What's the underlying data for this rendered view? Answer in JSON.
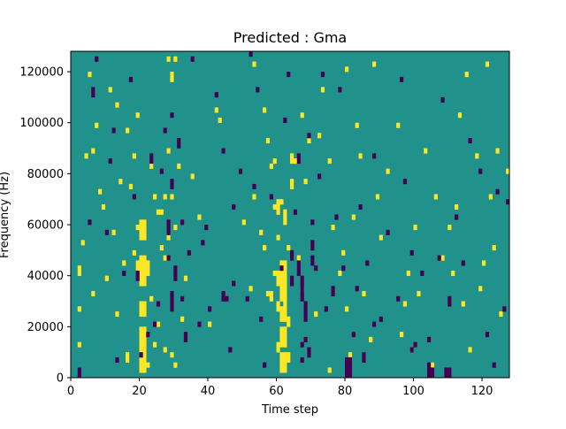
{
  "chart_data": {
    "type": "heatmap",
    "title": "Predicted : Gma",
    "xlabel": "Time step",
    "ylabel": "Frequency (Hz)",
    "xlim": [
      0,
      128
    ],
    "ylim": [
      0,
      128000
    ],
    "x_ticks": [
      0,
      20,
      40,
      60,
      80,
      100,
      120
    ],
    "y_ticks": [
      0,
      20000,
      40000,
      60000,
      80000,
      100000,
      120000
    ],
    "x_tick_labels": [
      "0",
      "20",
      "40",
      "60",
      "80",
      "100",
      "120"
    ],
    "y_tick_labels": [
      "0",
      "20000",
      "40000",
      "60000",
      "80000",
      "100000",
      "120000"
    ],
    "grid": false,
    "colormap": "viridis",
    "colors": {
      "low": "#440154",
      "mid": "#21918c",
      "high": "#fde725"
    },
    "value_range": [
      -1,
      1
    ],
    "background_value": 0,
    "rows": 128,
    "cols": 128,
    "cells_high": [
      [
        20,
        2,
        20
      ],
      [
        21,
        2,
        20
      ],
      [
        20,
        24,
        30
      ],
      [
        21,
        24,
        30
      ],
      [
        20,
        36,
        42
      ],
      [
        21,
        36,
        42
      ],
      [
        19,
        42,
        46
      ],
      [
        20,
        42,
        48
      ],
      [
        21,
        42,
        48
      ],
      [
        20,
        54,
        62
      ],
      [
        21,
        54,
        62
      ],
      [
        19,
        58,
        60
      ],
      [
        22,
        40,
        46
      ],
      [
        22,
        4,
        6
      ],
      [
        25,
        64,
        66
      ],
      [
        26,
        64,
        66
      ],
      [
        25,
        20,
        22
      ],
      [
        26,
        50,
        52
      ],
      [
        24,
        12,
        14
      ],
      [
        23,
        30,
        32
      ],
      [
        27,
        70,
        72
      ],
      [
        27,
        46,
        48
      ],
      [
        28,
        88,
        90
      ],
      [
        27,
        10,
        12
      ],
      [
        61,
        2,
        10
      ],
      [
        62,
        2,
        10
      ],
      [
        61,
        12,
        20
      ],
      [
        62,
        12,
        20
      ],
      [
        61,
        22,
        28
      ],
      [
        62,
        22,
        30
      ],
      [
        61,
        30,
        40
      ],
      [
        62,
        30,
        40
      ],
      [
        61,
        40,
        46
      ],
      [
        62,
        40,
        46
      ],
      [
        60,
        10,
        14
      ],
      [
        60,
        26,
        30
      ],
      [
        60,
        36,
        42
      ],
      [
        63,
        20,
        24
      ],
      [
        63,
        6,
        10
      ],
      [
        60,
        64,
        70
      ],
      [
        61,
        68,
        70
      ],
      [
        59,
        40,
        42
      ],
      [
        62,
        60,
        66
      ],
      [
        63,
        50,
        52
      ],
      [
        60,
        54,
        56
      ],
      [
        64,
        74,
        78
      ],
      [
        64,
        84,
        88
      ],
      [
        57,
        32,
        34
      ],
      [
        56,
        50,
        52
      ],
      [
        55,
        56,
        58
      ],
      [
        58,
        30,
        34
      ],
      [
        59,
        66,
        68
      ],
      [
        58,
        82,
        84
      ],
      [
        30,
        4,
        6
      ],
      [
        30,
        58,
        60
      ],
      [
        29,
        70,
        72
      ],
      [
        29,
        116,
        120
      ],
      [
        30,
        124,
        126
      ],
      [
        31,
        82,
        84
      ],
      [
        2,
        12,
        14
      ],
      [
        2,
        26,
        28
      ],
      [
        2,
        40,
        44
      ],
      [
        3,
        52,
        54
      ],
      [
        4,
        86,
        88
      ],
      [
        5,
        118,
        120
      ],
      [
        6,
        32,
        34
      ],
      [
        6,
        88,
        90
      ],
      [
        7,
        98,
        100
      ],
      [
        8,
        72,
        74
      ],
      [
        9,
        66,
        68
      ],
      [
        10,
        38,
        40
      ],
      [
        11,
        112,
        114
      ],
      [
        12,
        56,
        58
      ],
      [
        13,
        24,
        26
      ],
      [
        13,
        106,
        108
      ],
      [
        14,
        76,
        78
      ],
      [
        15,
        44,
        46
      ],
      [
        16,
        6,
        10
      ],
      [
        16,
        96,
        98
      ],
      [
        17,
        74,
        76
      ],
      [
        18,
        48,
        50
      ],
      [
        18,
        86,
        88
      ],
      [
        19,
        102,
        104
      ],
      [
        23,
        82,
        84
      ],
      [
        24,
        70,
        72
      ],
      [
        28,
        54,
        56
      ],
      [
        28,
        124,
        126
      ],
      [
        29,
        8,
        10
      ],
      [
        32,
        22,
        24
      ],
      [
        33,
        38,
        40
      ],
      [
        35,
        78,
        80
      ],
      [
        37,
        62,
        64
      ],
      [
        40,
        20,
        22
      ],
      [
        42,
        104,
        106
      ],
      [
        43,
        100,
        102
      ],
      [
        50,
        60,
        62
      ],
      [
        52,
        34,
        36
      ],
      [
        53,
        70,
        72
      ],
      [
        53,
        122,
        124
      ],
      [
        56,
        104,
        106
      ],
      [
        57,
        92,
        94
      ],
      [
        59,
        84,
        86
      ],
      [
        65,
        84,
        86
      ],
      [
        66,
        46,
        48
      ],
      [
        67,
        34,
        36
      ],
      [
        67,
        102,
        104
      ],
      [
        68,
        76,
        78
      ],
      [
        69,
        92,
        94
      ],
      [
        71,
        24,
        26
      ],
      [
        72,
        94,
        96
      ],
      [
        73,
        112,
        114
      ],
      [
        75,
        2,
        4
      ],
      [
        75,
        84,
        86
      ],
      [
        76,
        58,
        60
      ],
      [
        78,
        40,
        42
      ],
      [
        79,
        48,
        50
      ],
      [
        80,
        26,
        28
      ],
      [
        80,
        120,
        122
      ],
      [
        81,
        8,
        10
      ],
      [
        82,
        62,
        64
      ],
      [
        83,
        98,
        100
      ],
      [
        84,
        86,
        88
      ],
      [
        85,
        32,
        34
      ],
      [
        87,
        14,
        16
      ],
      [
        88,
        122,
        124
      ],
      [
        89,
        70,
        72
      ],
      [
        90,
        54,
        56
      ],
      [
        92,
        80,
        82
      ],
      [
        95,
        98,
        100
      ],
      [
        96,
        16,
        18
      ],
      [
        97,
        28,
        30
      ],
      [
        98,
        40,
        42
      ],
      [
        99,
        10,
        12
      ],
      [
        100,
        58,
        60
      ],
      [
        101,
        32,
        34
      ],
      [
        103,
        88,
        90
      ],
      [
        105,
        4,
        6
      ],
      [
        106,
        70,
        72
      ],
      [
        108,
        46,
        48
      ],
      [
        110,
        58,
        60
      ],
      [
        111,
        40,
        42
      ],
      [
        112,
        66,
        68
      ],
      [
        113,
        102,
        104
      ],
      [
        114,
        28,
        30
      ],
      [
        115,
        118,
        120
      ],
      [
        116,
        10,
        12
      ],
      [
        118,
        86,
        88
      ],
      [
        119,
        34,
        36
      ],
      [
        120,
        44,
        46
      ],
      [
        121,
        122,
        124
      ],
      [
        122,
        70,
        72
      ],
      [
        123,
        50,
        52
      ],
      [
        124,
        88,
        90
      ],
      [
        125,
        24,
        26
      ],
      [
        127,
        80,
        82
      ]
    ],
    "cells_low": [
      [
        80,
        0,
        8
      ],
      [
        81,
        0,
        8
      ],
      [
        104,
        0,
        6
      ],
      [
        105,
        0,
        4
      ],
      [
        109,
        0,
        4
      ],
      [
        110,
        0,
        4
      ],
      [
        88,
        20,
        22
      ],
      [
        99,
        10,
        12
      ],
      [
        85,
        6,
        10
      ],
      [
        29,
        26,
        34
      ],
      [
        30,
        38,
        44
      ],
      [
        28,
        46,
        48
      ],
      [
        28,
        56,
        62
      ],
      [
        29,
        74,
        78
      ],
      [
        31,
        90,
        94
      ],
      [
        32,
        60,
        62
      ],
      [
        33,
        14,
        18
      ],
      [
        44,
        30,
        34
      ],
      [
        45,
        30,
        32
      ],
      [
        47,
        36,
        38
      ],
      [
        67,
        30,
        40
      ],
      [
        66,
        40,
        46
      ],
      [
        68,
        22,
        30
      ],
      [
        70,
        50,
        54
      ],
      [
        70,
        44,
        48
      ],
      [
        64,
        46,
        50
      ],
      [
        69,
        8,
        12
      ],
      [
        67,
        6,
        8
      ],
      [
        68,
        14,
        16
      ],
      [
        2,
        0,
        4
      ],
      [
        5,
        60,
        62
      ],
      [
        6,
        110,
        114
      ],
      [
        7,
        124,
        126
      ],
      [
        10,
        56,
        58
      ],
      [
        11,
        84,
        86
      ],
      [
        12,
        96,
        98
      ],
      [
        13,
        6,
        8
      ],
      [
        15,
        40,
        42
      ],
      [
        17,
        116,
        118
      ],
      [
        18,
        70,
        72
      ],
      [
        19,
        38,
        42
      ],
      [
        20,
        8,
        10
      ],
      [
        22,
        16,
        18
      ],
      [
        23,
        84,
        88
      ],
      [
        24,
        20,
        22
      ],
      [
        25,
        28,
        30
      ],
      [
        26,
        80,
        82
      ],
      [
        27,
        96,
        98
      ],
      [
        29,
        102,
        104
      ],
      [
        32,
        30,
        32
      ],
      [
        34,
        48,
        50
      ],
      [
        35,
        124,
        126
      ],
      [
        37,
        20,
        22
      ],
      [
        38,
        52,
        54
      ],
      [
        39,
        58,
        60
      ],
      [
        40,
        26,
        28
      ],
      [
        42,
        110,
        112
      ],
      [
        44,
        88,
        90
      ],
      [
        46,
        10,
        12
      ],
      [
        47,
        66,
        68
      ],
      [
        49,
        80,
        82
      ],
      [
        51,
        30,
        32
      ],
      [
        52,
        126,
        128
      ],
      [
        53,
        74,
        76
      ],
      [
        54,
        112,
        114
      ],
      [
        55,
        22,
        24
      ],
      [
        56,
        4,
        6
      ],
      [
        58,
        70,
        72
      ],
      [
        61,
        42,
        44
      ],
      [
        62,
        100,
        102
      ],
      [
        63,
        118,
        120
      ],
      [
        64,
        36,
        40
      ],
      [
        65,
        64,
        66
      ],
      [
        66,
        84,
        88
      ],
      [
        67,
        12,
        14
      ],
      [
        69,
        94,
        96
      ],
      [
        70,
        60,
        62
      ],
      [
        71,
        42,
        44
      ],
      [
        72,
        78,
        80
      ],
      [
        73,
        118,
        120
      ],
      [
        74,
        26,
        28
      ],
      [
        76,
        32,
        36
      ],
      [
        77,
        62,
        64
      ],
      [
        78,
        112,
        114
      ],
      [
        79,
        42,
        44
      ],
      [
        82,
        16,
        18
      ],
      [
        83,
        34,
        36
      ],
      [
        84,
        66,
        68
      ],
      [
        86,
        44,
        46
      ],
      [
        88,
        86,
        88
      ],
      [
        90,
        22,
        24
      ],
      [
        92,
        56,
        58
      ],
      [
        95,
        30,
        32
      ],
      [
        96,
        116,
        118
      ],
      [
        97,
        76,
        78
      ],
      [
        99,
        48,
        50
      ],
      [
        100,
        12,
        14
      ],
      [
        102,
        40,
        42
      ],
      [
        104,
        14,
        16
      ],
      [
        107,
        46,
        48
      ],
      [
        108,
        108,
        110
      ],
      [
        110,
        28,
        32
      ],
      [
        112,
        62,
        64
      ],
      [
        114,
        44,
        46
      ],
      [
        116,
        92,
        94
      ],
      [
        119,
        80,
        82
      ],
      [
        121,
        16,
        18
      ],
      [
        123,
        4,
        6
      ],
      [
        124,
        72,
        74
      ],
      [
        126,
        26,
        28
      ],
      [
        127,
        68,
        70
      ]
    ]
  }
}
